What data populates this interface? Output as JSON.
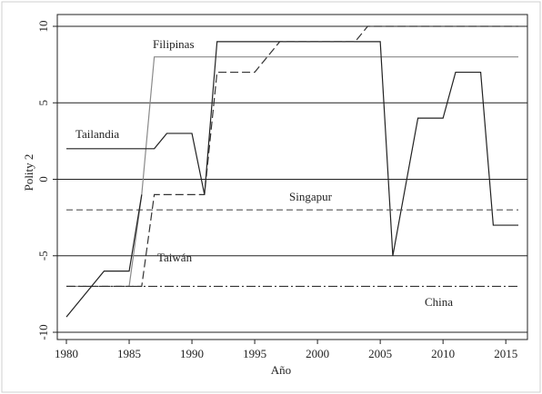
{
  "chart_data": {
    "type": "line",
    "title": "",
    "xlabel": "Año",
    "ylabel": "Polity 2",
    "xlim": [
      1980,
      2016
    ],
    "ylim": [
      -10,
      10
    ],
    "x_ticks": [
      1980,
      1985,
      1990,
      1995,
      2000,
      2005,
      2010,
      2015
    ],
    "y_ticks": [
      -10,
      -5,
      0,
      5,
      10
    ],
    "y_tick_labels": [
      "-10",
      "-5",
      "0",
      "5",
      "10"
    ],
    "grid": "horizontal",
    "legend": "inline labels",
    "series": [
      {
        "name": "Filipinas",
        "style": "solid-gray",
        "color": "#8a8a8a",
        "points": [
          [
            1980,
            -7
          ],
          [
            1985,
            -7
          ],
          [
            1986,
            -1
          ],
          [
            1987,
            8
          ],
          [
            2016,
            8
          ]
        ]
      },
      {
        "name": "Tailandia",
        "style": "solid",
        "color": "#222222",
        "points": [
          [
            1980,
            2
          ],
          [
            1987,
            2
          ],
          [
            1988,
            3
          ],
          [
            1990,
            3
          ],
          [
            1991,
            -1
          ],
          [
            1992,
            9
          ],
          [
            2005,
            9
          ],
          [
            2006,
            -5
          ],
          [
            2008,
            4
          ],
          [
            2010,
            4
          ],
          [
            2011,
            7
          ],
          [
            2013,
            7
          ],
          [
            2014,
            -3
          ],
          [
            2016,
            -3
          ]
        ]
      },
      {
        "name": "Singapur",
        "style": "dashed",
        "color": "#555555",
        "points": [
          [
            1980,
            -2
          ],
          [
            2016,
            -2
          ]
        ]
      },
      {
        "name": "Taiwán",
        "style": "longdash",
        "color": "#333333",
        "points": [
          [
            1980,
            -7
          ],
          [
            1986,
            -7
          ],
          [
            1987,
            -1
          ],
          [
            1991,
            -1
          ],
          [
            1992,
            7
          ],
          [
            1995,
            7
          ],
          [
            1997,
            9
          ],
          [
            2003,
            9
          ],
          [
            2004,
            10
          ],
          [
            2016,
            10
          ]
        ]
      },
      {
        "name": "China",
        "style": "dashdot",
        "color": "#333333",
        "points": [
          [
            1980,
            -7
          ],
          [
            2016,
            -7
          ]
        ]
      },
      {
        "name": "",
        "style": "solid",
        "color": "#222222",
        "points": [
          [
            1980,
            -9
          ],
          [
            1983,
            -6
          ],
          [
            1985,
            -6
          ],
          [
            1986,
            -1
          ]
        ]
      }
    ],
    "labels": {
      "filipinas": "Filipinas",
      "tailandia": "Tailandia",
      "singapur": "Singapur",
      "taiwan": "Taiwán",
      "china": "China"
    }
  }
}
